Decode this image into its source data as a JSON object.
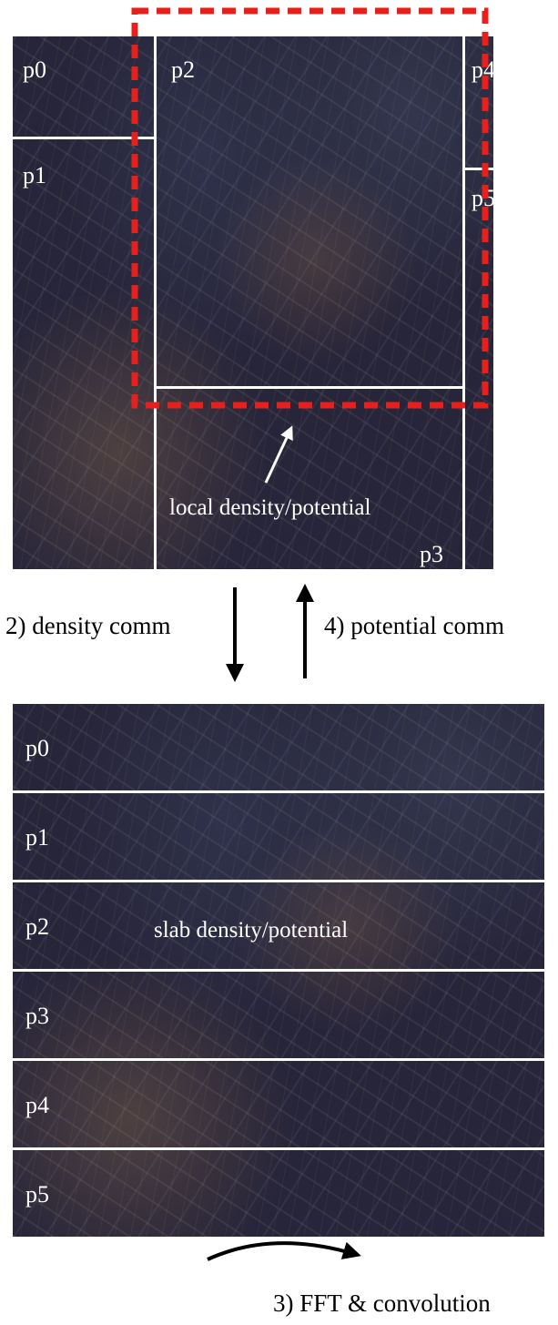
{
  "top_diagram": {
    "regions": [
      "p0",
      "p1",
      "p2",
      "p3",
      "p4",
      "p5"
    ],
    "caption": "local density/potential"
  },
  "arrows": {
    "down_label": "2) density comm",
    "up_label": "4) potential comm",
    "curve_label": "3) FFT & convolution"
  },
  "bottom_diagram": {
    "slabs": [
      "p0",
      "p1",
      "p2",
      "p3",
      "p4",
      "p5"
    ],
    "caption": "slab density/potential"
  },
  "colors": {
    "highlight_box": "#e8201c",
    "background_texture": "#27253a",
    "divider": "#ffffff"
  }
}
